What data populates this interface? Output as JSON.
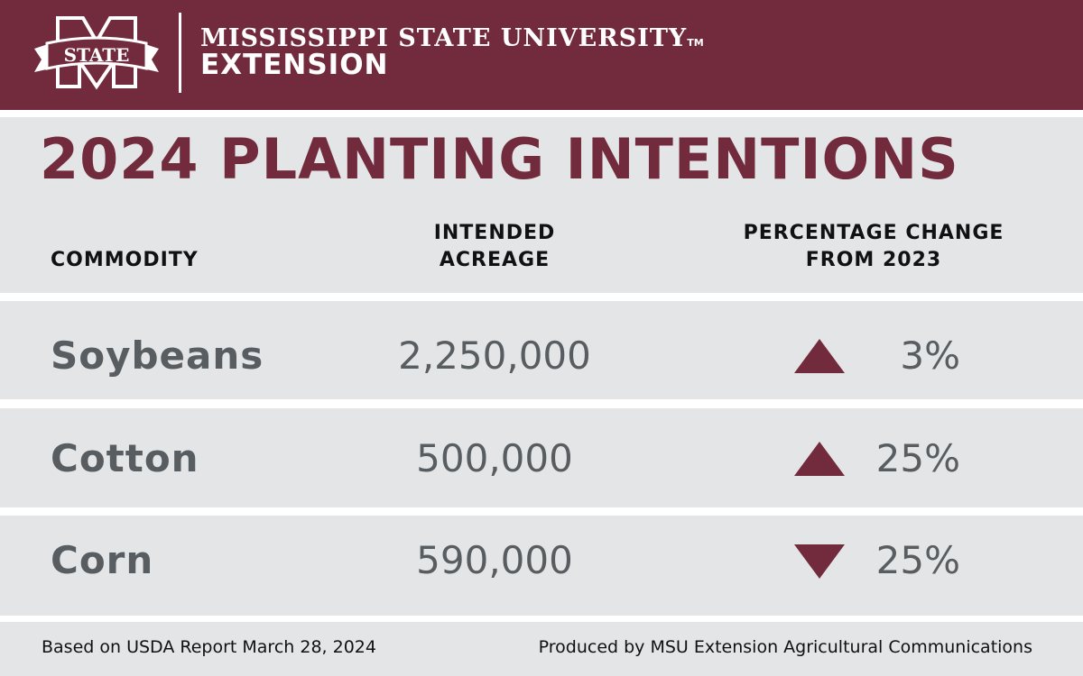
{
  "header": {
    "org_line1": "MISSISSIPPI STATE UNIVERSITY",
    "trademark": "TM",
    "org_line2": "EXTENSION",
    "logo_text": "STATE"
  },
  "colors": {
    "maroon": "#722b3d",
    "band": "#e3e5e7",
    "text": "#585d61"
  },
  "chart_data": {
    "type": "table",
    "title": "2024 PLANTING INTENTIONS",
    "columns": [
      "COMMODITY",
      "INTENDED ACREAGE",
      "PERCENTAGE CHANGE FROM 2023"
    ],
    "column_lines": [
      [
        "COMMODITY"
      ],
      [
        "INTENDED",
        "ACREAGE"
      ],
      [
        "PERCENTAGE CHANGE",
        "FROM 2023"
      ]
    ],
    "rows": [
      {
        "commodity": "Soybeans",
        "acreage": "2,250,000",
        "change": "3%",
        "direction": "up"
      },
      {
        "commodity": "Cotton",
        "acreage": "500,000",
        "change": "25%",
        "direction": "up"
      },
      {
        "commodity": "Corn",
        "acreage": "590,000",
        "change": "25%",
        "direction": "down"
      }
    ]
  },
  "footer": {
    "source": "Based on USDA Report March 28, 2024",
    "credit": "Produced by MSU Extension Agricultural Communications"
  }
}
